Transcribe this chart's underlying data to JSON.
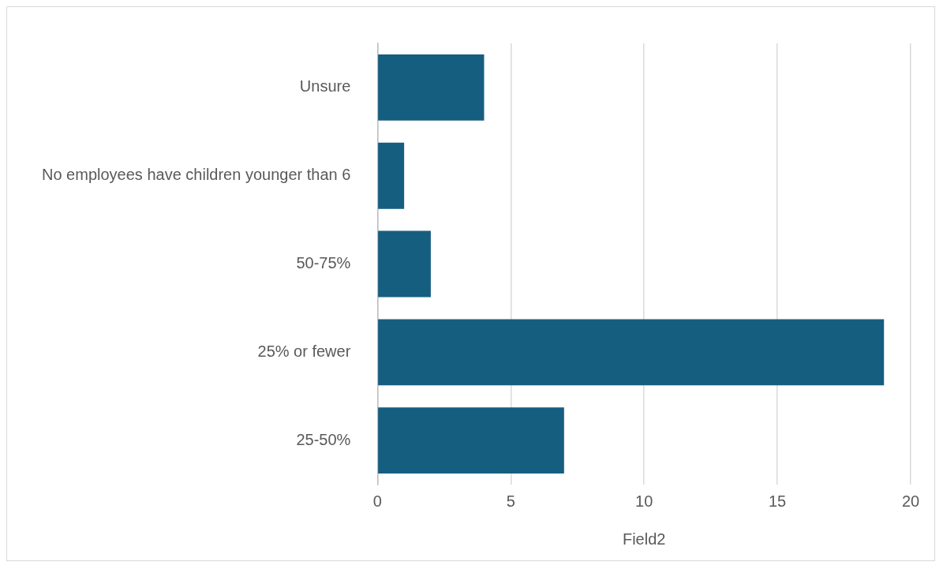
{
  "chart_data": {
    "type": "bar",
    "orientation": "horizontal",
    "xlabel": "Field2",
    "categories": [
      "Unsure",
      "No employees have children younger than 6",
      "50-75%",
      "25% or fewer",
      "25-50%"
    ],
    "values": [
      4,
      1,
      2,
      19,
      7
    ],
    "color": "#165e80",
    "xlim": [
      0,
      20
    ],
    "xticks": [
      0,
      5,
      10,
      15,
      20
    ],
    "grid": "x"
  }
}
